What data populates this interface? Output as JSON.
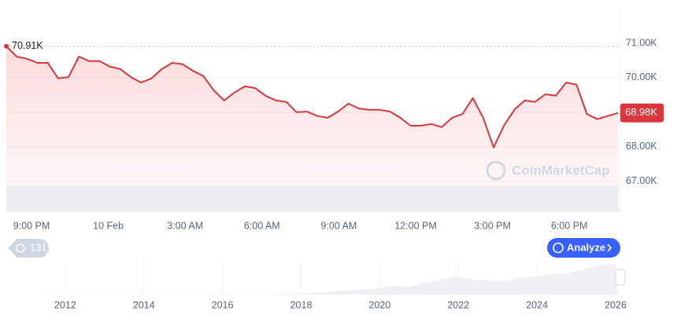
{
  "chart_data": {
    "type": "line",
    "x_labels": [
      "9:00 PM",
      "10 Feb",
      "3:00 AM",
      "6:00 AM",
      "9:00 AM",
      "12:00 PM",
      "3:00 PM",
      "6:00 PM"
    ],
    "values": [
      70910,
      70610,
      70550,
      70430,
      70430,
      69980,
      70020,
      70610,
      70480,
      70480,
      70320,
      70250,
      70020,
      69860,
      69980,
      70250,
      70430,
      70390,
      70200,
      70050,
      69640,
      69340,
      69570,
      69750,
      69700,
      69480,
      69340,
      69300,
      69000,
      69020,
      68890,
      68840,
      69020,
      69250,
      69110,
      69070,
      69070,
      69020,
      68840,
      68610,
      68610,
      68660,
      68570,
      68840,
      68950,
      69410,
      68840,
      67980,
      68610,
      69070,
      69340,
      69300,
      69520,
      69480,
      69860,
      69800,
      68950,
      68800,
      68890,
      68980
    ],
    "value_labels": [
      "70.91K",
      null,
      null,
      null,
      null,
      null,
      null,
      null,
      null,
      null,
      null,
      null,
      null,
      null,
      null,
      null,
      null,
      null,
      null,
      null,
      null,
      null,
      null,
      null,
      null,
      null,
      null,
      null,
      null,
      null,
      null,
      null,
      null,
      null,
      null,
      null,
      null,
      null,
      null,
      null,
      null,
      null,
      null,
      null,
      null,
      null,
      null,
      null,
      null,
      null,
      null,
      null,
      null,
      null,
      null,
      null,
      null,
      null,
      null,
      "68.98K"
    ],
    "color": "#d9363e",
    "ylim": [
      66200,
      72000
    ],
    "yticks": [
      {
        "value": 67000,
        "label": "67.00K"
      },
      {
        "value": 68000,
        "label": "68.00K"
      },
      {
        "value": 69000,
        "label": "69.00K"
      },
      {
        "value": 70000,
        "label": "70.00K"
      },
      {
        "value": 71000,
        "label": "71.00K"
      }
    ],
    "grid": true,
    "watermark": "CoinMarketCap",
    "history_count": 131,
    "button": "Analyze",
    "overview": {
      "xlim": [
        2010.5,
        2026.1
      ],
      "xticks": [
        2012,
        2014,
        2016,
        2018,
        2020,
        2022,
        2024,
        2026
      ]
    }
  }
}
